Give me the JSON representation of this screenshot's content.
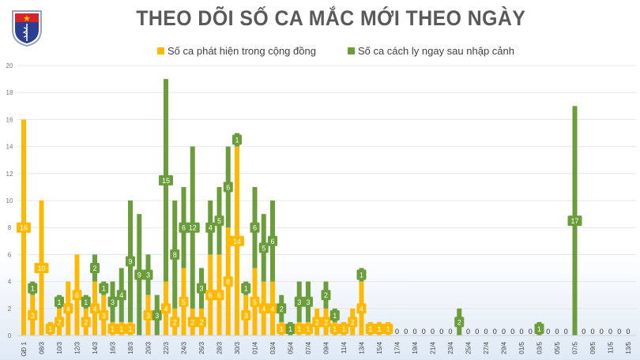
{
  "logo": {
    "text_top": "BỘ Y TẾ",
    "text_bottom": "MINISTRY OF HEALTH"
  },
  "chart_data": {
    "type": "bar",
    "stacked": true,
    "title": "THEO DÕI SỐ CA MẮC MỚI THEO NGÀY",
    "xlabel": "",
    "ylabel": "",
    "ylim": [
      0,
      20
    ],
    "yticks": [
      0,
      2,
      4,
      6,
      8,
      10,
      12,
      14,
      16,
      18,
      20
    ],
    "grid": true,
    "legend_position": "top",
    "colors": {
      "community": "#FFB900",
      "quarantine": "#6B9E3A"
    },
    "categories": [
      "GĐ 1",
      "07/3",
      "08/3",
      "09/3",
      "10/3",
      "11/3",
      "12/3",
      "13/3",
      "14/3",
      "15/3",
      "16/3",
      "17/3",
      "18/3",
      "19/3",
      "20/3",
      "21/3",
      "22/3",
      "23/3",
      "24/3",
      "25/3",
      "26/3",
      "27/3",
      "28/3",
      "29/3",
      "30/3",
      "31/3",
      "01/4",
      "02/4",
      "03/4",
      "04/4",
      "05/4",
      "06/4",
      "07/4",
      "08/4",
      "09/4",
      "10/4",
      "11/4",
      "12/4",
      "13/4",
      "14/4",
      "15/4",
      "16/4",
      "17/4",
      "18/4",
      "19/4",
      "20/4",
      "21/4",
      "22/4",
      "23/4",
      "24/4",
      "25/4",
      "26/4",
      "27/4",
      "28/4",
      "29/4",
      "30/4",
      "01/5",
      "02/5",
      "03/5",
      "04/5",
      "05/5",
      "06/5",
      "07/5",
      "08/5",
      "09/5",
      "10/5",
      "11/5",
      "12/5",
      "13/5"
    ],
    "series": [
      {
        "name": "Số ca phát hiện trong cộng đồng",
        "values": [
          16,
          3,
          10,
          1,
          2,
          4,
          6,
          2,
          4,
          3,
          1,
          1,
          1,
          0,
          3,
          0,
          4,
          2,
          5,
          2,
          2,
          6,
          6,
          8,
          14,
          3,
          5,
          4,
          4,
          1,
          0,
          1,
          1,
          2,
          2,
          1,
          1,
          2,
          4,
          1,
          1,
          1,
          0,
          0,
          0,
          0,
          0,
          0,
          0,
          0,
          0,
          0,
          0,
          0,
          0,
          0,
          0,
          0,
          0,
          0,
          0,
          0,
          0,
          0,
          0,
          0,
          0,
          0,
          0
        ]
      },
      {
        "name": "Số ca cách ly ngay sau nhập cảnh",
        "values": [
          0,
          1,
          0,
          0,
          1,
          0,
          0,
          1,
          2,
          1,
          3,
          4,
          9,
          9,
          3,
          3,
          15,
          8,
          6,
          12,
          3,
          4,
          5,
          6,
          1,
          1,
          6,
          5,
          6,
          2,
          1,
          3,
          3,
          0,
          2,
          1,
          0,
          0,
          1,
          0,
          0,
          0,
          0,
          0,
          0,
          0,
          0,
          0,
          0,
          2,
          0,
          0,
          0,
          0,
          0,
          0,
          0,
          0,
          1,
          0,
          0,
          0,
          17,
          0,
          0,
          0,
          0,
          0,
          0
        ]
      }
    ]
  }
}
